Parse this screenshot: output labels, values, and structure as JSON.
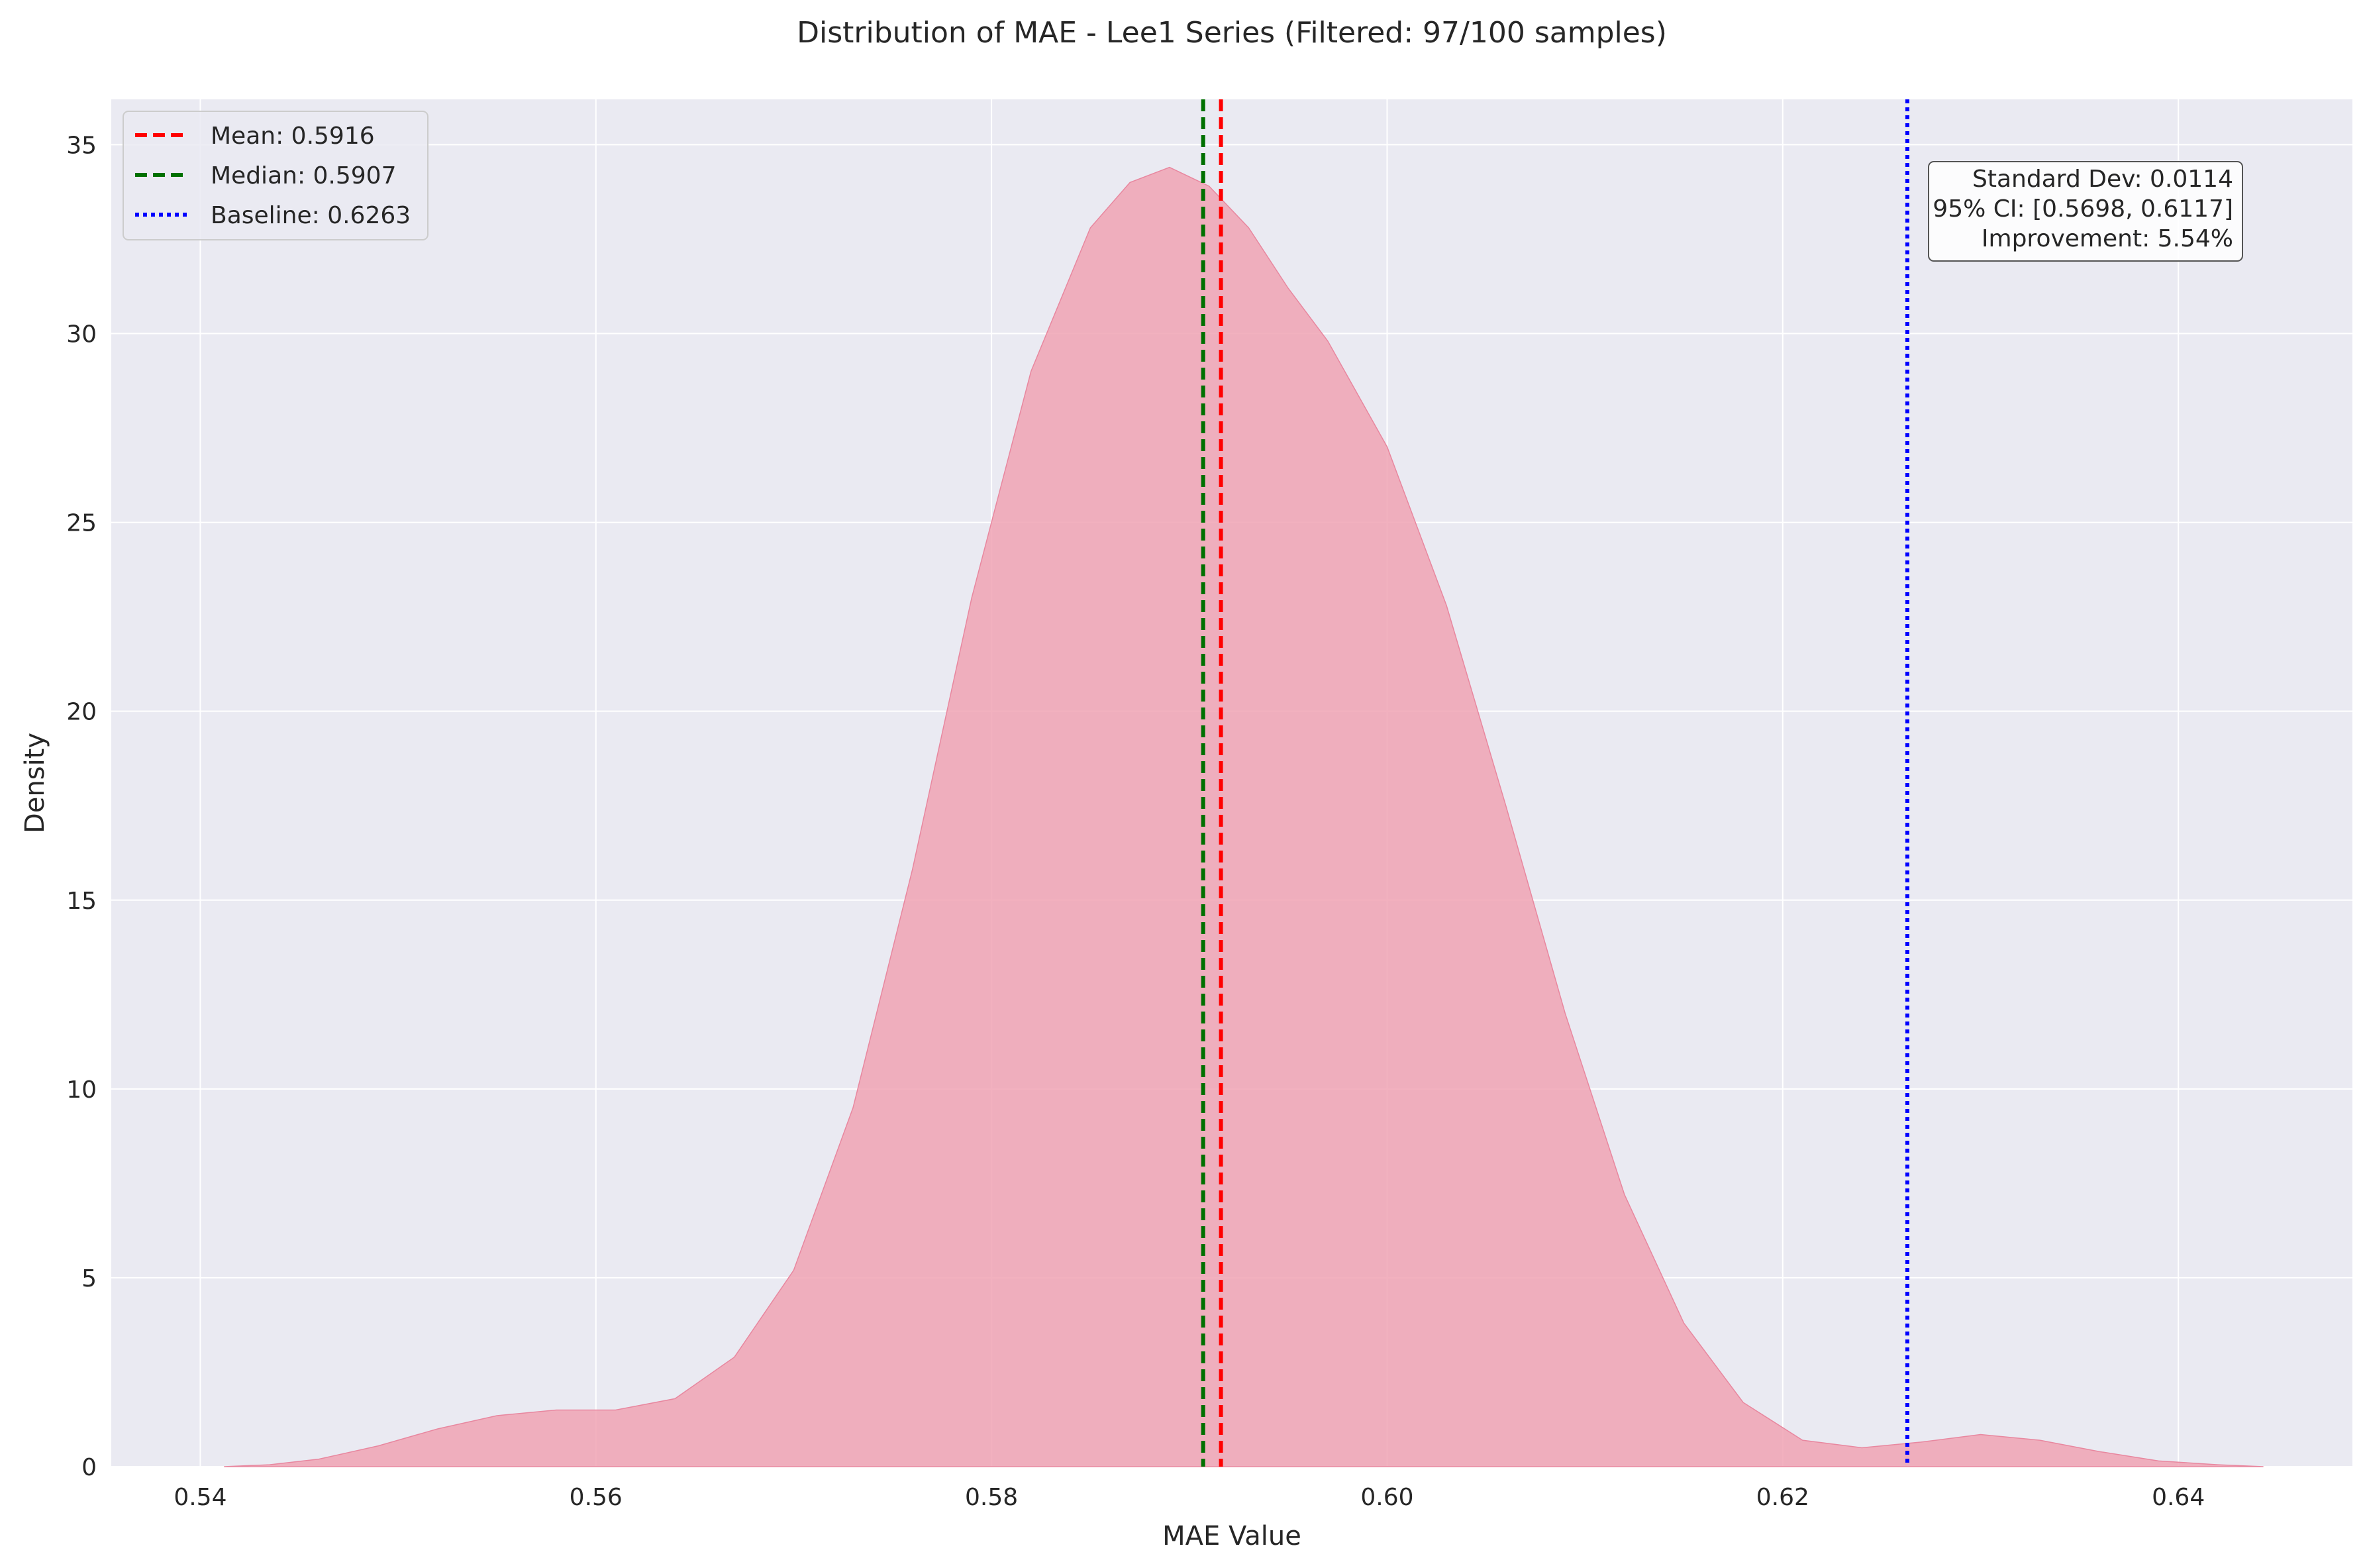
{
  "chart_data": {
    "type": "area",
    "title": "Distribution of MAE - Lee1 Series (Filtered: 97/100 samples)",
    "xlabel": "MAE Value",
    "ylabel": "Density",
    "xlim": [
      0.5355,
      0.6488
    ],
    "ylim": [
      0,
      36.2
    ],
    "xticks": [
      0.54,
      0.56,
      0.58,
      0.6,
      0.62,
      0.64
    ],
    "xtick_labels": [
      "0.54",
      "0.56",
      "0.58",
      "0.60",
      "0.62",
      "0.64"
    ],
    "yticks": [
      0,
      5,
      10,
      15,
      20,
      25,
      30,
      35
    ],
    "ytick_labels": [
      "0",
      "5",
      "10",
      "15",
      "20",
      "25",
      "30",
      "35"
    ],
    "grid": true,
    "legend_position": "top-left",
    "series": [
      {
        "kind": "kde",
        "color": "#f0a3b4",
        "stroke": "#e8879f",
        "x": [
          0.5412,
          0.5435,
          0.546,
          0.549,
          0.552,
          0.555,
          0.558,
          0.561,
          0.564,
          0.567,
          0.57,
          0.573,
          0.576,
          0.579,
          0.582,
          0.585,
          0.587,
          0.589,
          0.591,
          0.593,
          0.595,
          0.597,
          0.6,
          0.603,
          0.606,
          0.609,
          0.612,
          0.615,
          0.618,
          0.621,
          0.624,
          0.627,
          0.63,
          0.633,
          0.636,
          0.639,
          0.642,
          0.6443
        ],
        "y": [
          0.0,
          0.05,
          0.2,
          0.55,
          1.0,
          1.35,
          1.5,
          1.5,
          1.8,
          2.9,
          5.2,
          9.5,
          15.8,
          23.0,
          29.0,
          32.8,
          34.0,
          34.4,
          33.9,
          32.8,
          31.2,
          29.8,
          27.0,
          22.8,
          17.5,
          12.0,
          7.2,
          3.8,
          1.7,
          0.7,
          0.5,
          0.65,
          0.85,
          0.7,
          0.4,
          0.15,
          0.05,
          0.0
        ]
      }
    ],
    "reference_lines": [
      {
        "label": "Mean: 0.5916",
        "value": 0.5916,
        "color": "#ff0000",
        "style": "dashed"
      },
      {
        "label": "Median: 0.5907",
        "value": 0.5907,
        "color": "#007000",
        "style": "dashed"
      },
      {
        "label": "Baseline: 0.6263",
        "value": 0.6263,
        "color": "#0000ff",
        "style": "dotted"
      }
    ],
    "annotation": {
      "lines": [
        "Standard Dev: 0.0114",
        "95% CI: [0.5698, 0.6117]",
        "Improvement: 5.54%"
      ],
      "position": "top-right"
    },
    "colors": {
      "plot_background": "#eaeaf2",
      "grid": "#ffffff"
    }
  }
}
